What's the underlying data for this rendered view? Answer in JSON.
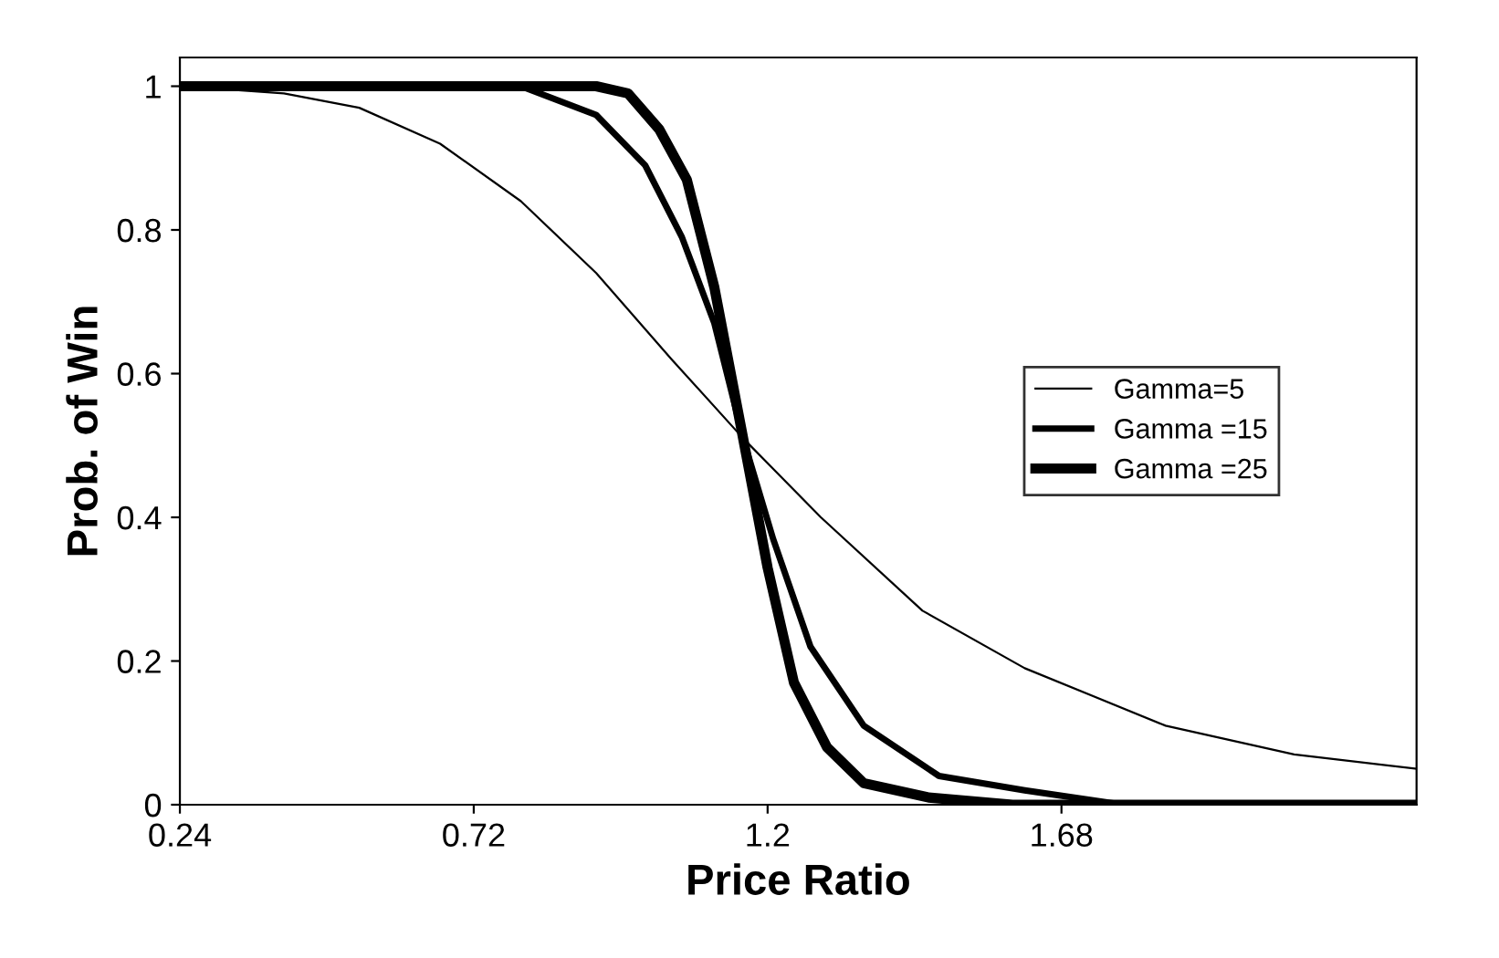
{
  "chart_data": {
    "type": "line",
    "xlabel": "Price Ratio",
    "ylabel": "Prob. of Win",
    "xlim": [
      0.24,
      2.26
    ],
    "xticks": [
      0.24,
      0.72,
      1.2,
      1.68
    ],
    "ylim": [
      0,
      1.04
    ],
    "yticks": [
      0,
      0.2,
      0.4,
      0.6,
      0.8,
      1
    ],
    "grid": false,
    "legend": "right",
    "marker": "none",
    "line_style": "solid",
    "series": [
      {
        "name": "Gamma=5",
        "color": "#000000",
        "x": [
          0.24,
          0.41,
          0.533,
          0.665,
          0.797,
          0.92,
          1.043,
          1.16,
          1.287,
          1.453,
          1.62,
          1.85,
          2.06,
          2.26
        ],
        "values": [
          1.0,
          0.99,
          0.97,
          0.92,
          0.84,
          0.74,
          0.62,
          0.51,
          0.4,
          0.27,
          0.19,
          0.11,
          0.07,
          0.05
        ]
      },
      {
        "name": "Gamma =15",
        "color": "#000000",
        "x": [
          0.24,
          0.797,
          0.92,
          1.0,
          1.06,
          1.113,
          1.16,
          1.209,
          1.27,
          1.357,
          1.48,
          1.62,
          1.78,
          2.0,
          2.26
        ],
        "values": [
          1.0,
          1.0,
          0.96,
          0.89,
          0.79,
          0.67,
          0.51,
          0.37,
          0.22,
          0.11,
          0.04,
          0.02,
          0.0,
          0.0,
          0.0
        ]
      },
      {
        "name": "Gamma =25",
        "color": "#000000",
        "x": [
          0.24,
          0.92,
          0.972,
          1.023,
          1.068,
          1.113,
          1.16,
          1.2,
          1.243,
          1.297,
          1.357,
          1.463,
          1.6,
          2.26
        ],
        "values": [
          1.0,
          1.0,
          0.99,
          0.94,
          0.87,
          0.72,
          0.51,
          0.33,
          0.17,
          0.08,
          0.03,
          0.01,
          0.0,
          0.0
        ]
      }
    ]
  }
}
